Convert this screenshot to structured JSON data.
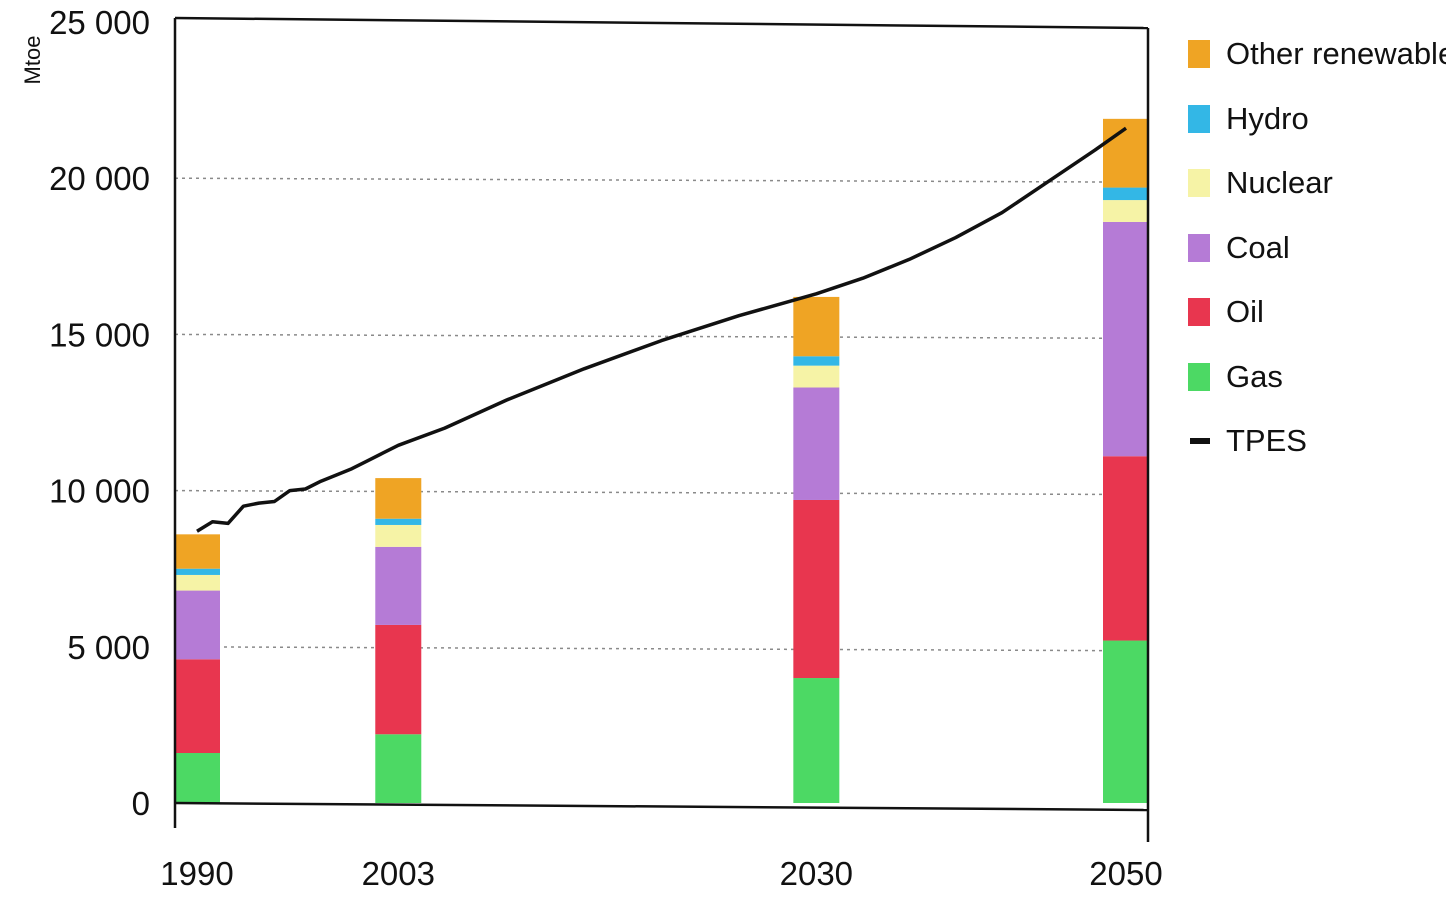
{
  "chart_data": {
    "type": "bar",
    "stacked": true,
    "ylabel": "Mtoe",
    "xlabel": "",
    "ylim": [
      0,
      25000
    ],
    "yticks": [
      0,
      5000,
      10000,
      15000,
      20000,
      25000
    ],
    "ytick_labels": [
      "0",
      "5 000",
      "10 000",
      "15 000",
      "20 000",
      "25 000"
    ],
    "categories": [
      "1990",
      "2003",
      "2030",
      "2050"
    ],
    "grid": "horizontal dotted",
    "legend_position": "right",
    "series": [
      {
        "name": "Gas",
        "color": "#4cd964",
        "values": [
          1600,
          2200,
          4000,
          5200
        ]
      },
      {
        "name": "Oil",
        "color": "#e8364f",
        "values": [
          3000,
          3500,
          5700,
          5900
        ]
      },
      {
        "name": "Coal",
        "color": "#b57bd6",
        "values": [
          2200,
          2500,
          3600,
          7500
        ]
      },
      {
        "name": "Nuclear",
        "color": "#f6f3a6",
        "values": [
          500,
          700,
          700,
          700
        ]
      },
      {
        "name": "Hydro",
        "color": "#33b7e6",
        "values": [
          200,
          200,
          300,
          400
        ]
      },
      {
        "name": "Other renewables",
        "color": "#efa424",
        "values": [
          1100,
          1300,
          1900,
          2200
        ]
      }
    ],
    "tpes_line": {
      "name": "TPES",
      "color": "#111111",
      "points": [
        [
          1990,
          8700
        ],
        [
          1991,
          9000
        ],
        [
          1992,
          8950
        ],
        [
          1993,
          9500
        ],
        [
          1994,
          9600
        ],
        [
          1995,
          9650
        ],
        [
          1996,
          10000
        ],
        [
          1997,
          10050
        ],
        [
          1998,
          10300
        ],
        [
          1999,
          10500
        ],
        [
          2000,
          10700
        ],
        [
          2001,
          10950
        ],
        [
          2002,
          11200
        ],
        [
          2003,
          11450
        ],
        [
          2006,
          12000
        ],
        [
          2010,
          12900
        ],
        [
          2015,
          13900
        ],
        [
          2020,
          14800
        ],
        [
          2025,
          15600
        ],
        [
          2030,
          16300
        ],
        [
          2033,
          16800
        ],
        [
          2036,
          17400
        ],
        [
          2039,
          18100
        ],
        [
          2042,
          18900
        ],
        [
          2045,
          19900
        ],
        [
          2048,
          20900
        ],
        [
          2050,
          21600
        ]
      ]
    }
  },
  "legend": {
    "items": [
      {
        "label": "Other renewables",
        "color": "#efa424",
        "kind": "box"
      },
      {
        "label": "Hydro",
        "color": "#33b7e6",
        "kind": "box"
      },
      {
        "label": "Nuclear",
        "color": "#f6f3a6",
        "kind": "box"
      },
      {
        "label": "Coal",
        "color": "#b57bd6",
        "kind": "box"
      },
      {
        "label": "Oil",
        "color": "#e8364f",
        "kind": "box"
      },
      {
        "label": "Gas",
        "color": "#4cd964",
        "kind": "box"
      },
      {
        "label": "TPES",
        "color": "#111111",
        "kind": "line"
      }
    ]
  }
}
